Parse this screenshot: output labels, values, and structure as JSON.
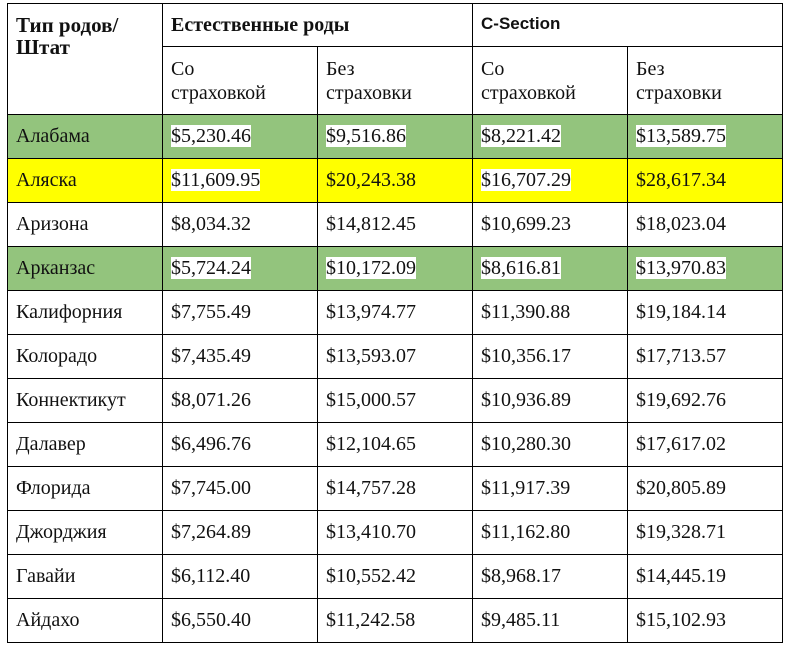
{
  "table": {
    "header": {
      "corner": "Тип родов/ Штат",
      "group_natural": "Естественные роды",
      "group_csection": "C-Section",
      "subheaders": [
        "Со страховкой",
        "Без страховки",
        "Со страховкой",
        "Без страховки"
      ]
    },
    "rows": [
      {
        "color": "#93c47d",
        "cells": [
          "Алабама",
          "$5,230.46",
          "$9,516.86",
          "$8,221.42",
          "$13,589.75"
        ]
      },
      {
        "color": "#ffff00",
        "cells": [
          "Аляска",
          "$11,609.95",
          "$20,243.38",
          "$16,707.29",
          "$28,617.34"
        ]
      },
      {
        "cells": [
          "Аризона",
          "$8,034.32",
          "$14,812.45",
          "$10,699.23",
          "$18,023.04"
        ]
      },
      {
        "color": "#93c47d",
        "cells": [
          "Арканзас",
          "$5,724.24",
          "$10,172.09",
          "$8,616.81",
          "$13,970.83"
        ]
      },
      {
        "cells": [
          "Калифорния",
          "$7,755.49",
          "$13,974.77",
          "$11,390.88",
          "$19,184.14"
        ]
      },
      {
        "cells": [
          "Колорадо",
          "$7,435.49",
          "$13,593.07",
          "$10,356.17",
          "$17,713.57"
        ]
      },
      {
        "cells": [
          "Коннектикут",
          "$8,071.26",
          "$15,000.57",
          "$10,936.89",
          "$19,692.76"
        ]
      },
      {
        "cells": [
          "Далавер",
          "$6,496.76",
          "$12,104.65",
          "$10,280.30",
          "$17,617.02"
        ]
      },
      {
        "cells": [
          "Флорида",
          "$7,745.00",
          "$14,757.28",
          "$11,917.39",
          "$20,805.89"
        ]
      },
      {
        "cells": [
          "Джорджия",
          "$7,264.89",
          "$13,410.70",
          "$11,162.80",
          "$19,328.71"
        ]
      },
      {
        "cells": [
          "Гавайи",
          "$6,112.40",
          "$10,552.42",
          "$8,968.17",
          "$14,445.19"
        ]
      },
      {
        "cells": [
          "Айдахо",
          "$6,550.40",
          "$11,242.58",
          "$9,485.11",
          "$15,102.93"
        ]
      }
    ]
  }
}
